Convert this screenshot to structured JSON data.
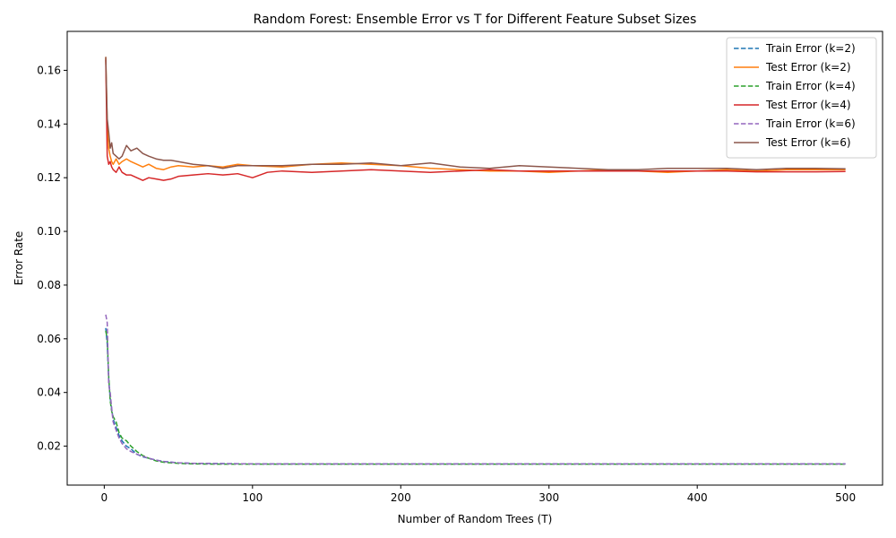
{
  "chart_data": {
    "type": "line",
    "title": "Random Forest: Ensemble Error vs T for Different Feature Subset Sizes",
    "xlabel": "Number of Random Trees (T)",
    "ylabel": "Error Rate",
    "xlim": [
      -25,
      525
    ],
    "ylim": [
      0.0055,
      0.1745
    ],
    "xticks": [
      0,
      100,
      200,
      300,
      400,
      500
    ],
    "yticks": [
      0.02,
      0.04,
      0.06,
      0.08,
      0.1,
      0.12,
      0.14,
      0.16
    ],
    "ytick_labels": [
      "0.02",
      "0.04",
      "0.06",
      "0.08",
      "0.10",
      "0.12",
      "0.14",
      "0.16"
    ],
    "grid": false,
    "legend_position": "top-right",
    "series": [
      {
        "name": "Train Error (k=2)",
        "color": "#1f77b4",
        "dashed": true,
        "x": [
          1,
          2,
          3,
          4,
          5,
          6,
          8,
          10,
          12,
          15,
          18,
          22,
          26,
          30,
          35,
          40,
          50,
          60,
          80,
          100,
          150,
          200,
          300,
          400,
          500
        ],
        "y": [
          0.064,
          0.058,
          0.045,
          0.038,
          0.034,
          0.03,
          0.027,
          0.024,
          0.022,
          0.02,
          0.019,
          0.017,
          0.016,
          0.0155,
          0.0148,
          0.0143,
          0.0138,
          0.0136,
          0.0135,
          0.0134,
          0.0134,
          0.0134,
          0.0134,
          0.0134,
          0.0134
        ]
      },
      {
        "name": "Test Error (k=2)",
        "color": "#ff7f0e",
        "dashed": false,
        "x": [
          1,
          2,
          3,
          4,
          5,
          6,
          8,
          10,
          12,
          15,
          18,
          22,
          26,
          30,
          35,
          40,
          45,
          50,
          60,
          70,
          80,
          90,
          100,
          120,
          140,
          160,
          180,
          200,
          220,
          240,
          260,
          280,
          300,
          320,
          340,
          360,
          380,
          400,
          420,
          440,
          460,
          480,
          500
        ],
        "y": [
          0.165,
          0.14,
          0.131,
          0.128,
          0.126,
          0.125,
          0.127,
          0.125,
          0.126,
          0.127,
          0.126,
          0.125,
          0.124,
          0.125,
          0.1235,
          0.123,
          0.124,
          0.1245,
          0.124,
          0.1245,
          0.124,
          0.125,
          0.1245,
          0.124,
          0.125,
          0.1255,
          0.125,
          0.1245,
          0.1235,
          0.123,
          0.1225,
          0.1225,
          0.122,
          0.1225,
          0.123,
          0.1225,
          0.122,
          0.1225,
          0.123,
          0.1225,
          0.123,
          0.123,
          0.123
        ]
      },
      {
        "name": "Train Error (k=4)",
        "color": "#2ca02c",
        "dashed": true,
        "x": [
          1,
          2,
          3,
          4,
          5,
          6,
          8,
          10,
          12,
          15,
          18,
          22,
          26,
          30,
          35,
          40,
          50,
          60,
          80,
          100,
          150,
          200,
          300,
          400,
          500
        ],
        "y": [
          0.063,
          0.06,
          0.046,
          0.037,
          0.033,
          0.031,
          0.029,
          0.025,
          0.023,
          0.022,
          0.02,
          0.018,
          0.0165,
          0.0155,
          0.0145,
          0.014,
          0.0136,
          0.0134,
          0.0133,
          0.0133,
          0.0133,
          0.0133,
          0.0133,
          0.0133,
          0.0133
        ]
      },
      {
        "name": "Test Error (k=4)",
        "color": "#d62728",
        "dashed": false,
        "x": [
          1,
          2,
          3,
          4,
          5,
          6,
          8,
          10,
          12,
          15,
          18,
          22,
          26,
          30,
          35,
          40,
          45,
          50,
          60,
          70,
          80,
          90,
          100,
          110,
          120,
          140,
          160,
          180,
          200,
          220,
          240,
          260,
          280,
          300,
          320,
          340,
          360,
          380,
          400,
          420,
          440,
          460,
          480,
          500
        ],
        "y": [
          0.164,
          0.128,
          0.125,
          0.126,
          0.124,
          0.123,
          0.122,
          0.124,
          0.122,
          0.121,
          0.121,
          0.12,
          0.119,
          0.12,
          0.1195,
          0.119,
          0.1195,
          0.1205,
          0.121,
          0.1215,
          0.121,
          0.1215,
          0.12,
          0.122,
          0.1225,
          0.122,
          0.1225,
          0.123,
          0.1225,
          0.122,
          0.1225,
          0.123,
          0.1225,
          0.1225,
          0.1225,
          0.1225,
          0.1225,
          0.1225,
          0.1225,
          0.1225,
          0.1222,
          0.1222,
          0.1222,
          0.1223
        ]
      },
      {
        "name": "Train Error (k=6)",
        "color": "#9467bd",
        "dashed": true,
        "x": [
          1,
          2,
          3,
          4,
          5,
          6,
          8,
          10,
          12,
          15,
          18,
          22,
          26,
          30,
          35,
          40,
          50,
          60,
          80,
          100,
          150,
          200,
          300,
          400,
          500
        ],
        "y": [
          0.069,
          0.066,
          0.043,
          0.04,
          0.034,
          0.029,
          0.026,
          0.023,
          0.021,
          0.019,
          0.018,
          0.017,
          0.0162,
          0.0155,
          0.0148,
          0.0143,
          0.0138,
          0.0136,
          0.0135,
          0.0134,
          0.0134,
          0.0134,
          0.0134,
          0.0134,
          0.0134
        ]
      },
      {
        "name": "Test Error (k=6)",
        "color": "#8c564b",
        "dashed": false,
        "x": [
          1,
          2,
          3,
          4,
          5,
          6,
          8,
          10,
          12,
          15,
          18,
          22,
          26,
          30,
          35,
          40,
          45,
          50,
          60,
          70,
          80,
          90,
          100,
          120,
          140,
          160,
          180,
          200,
          220,
          240,
          260,
          280,
          300,
          320,
          340,
          360,
          380,
          400,
          420,
          440,
          460,
          480,
          500
        ],
        "y": [
          0.165,
          0.142,
          0.137,
          0.131,
          0.133,
          0.129,
          0.128,
          0.127,
          0.128,
          0.132,
          0.13,
          0.131,
          0.129,
          0.128,
          0.127,
          0.1265,
          0.1265,
          0.126,
          0.125,
          0.1245,
          0.1235,
          0.1245,
          0.1245,
          0.1245,
          0.125,
          0.125,
          0.1255,
          0.1245,
          0.1255,
          0.124,
          0.1235,
          0.1245,
          0.124,
          0.1235,
          0.123,
          0.123,
          0.1235,
          0.1235,
          0.1235,
          0.123,
          0.1235,
          0.1235,
          0.1233
        ]
      }
    ]
  }
}
